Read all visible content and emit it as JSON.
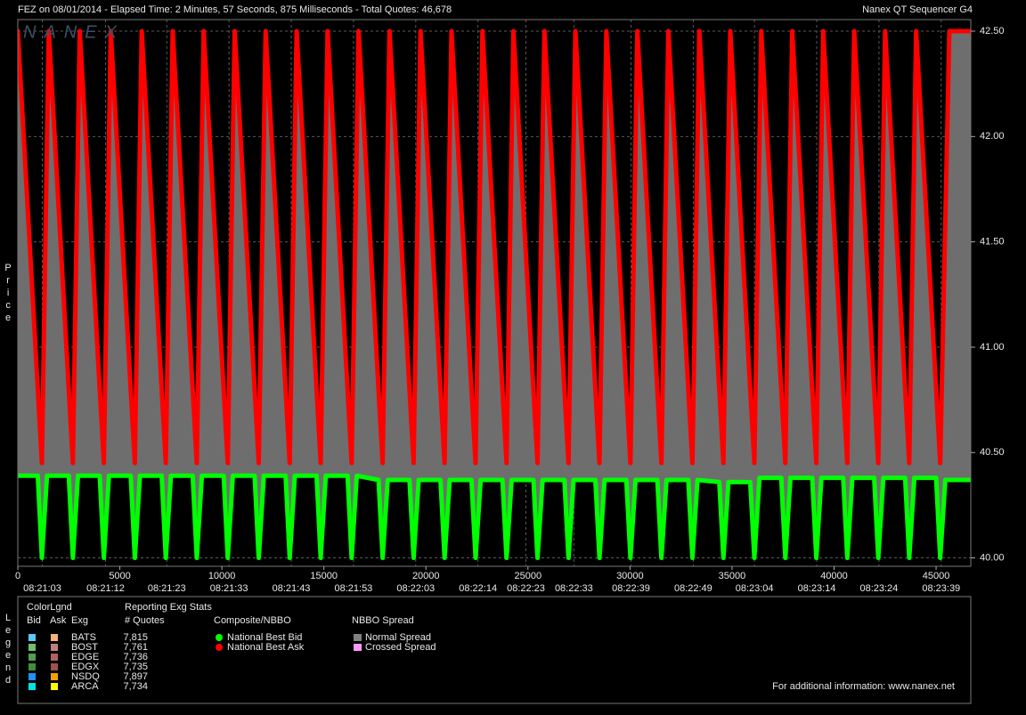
{
  "header": {
    "title": "FEZ on 08/01/2014  -  Elapsed Time: 2 Minutes, 57 Seconds, 875 Milliseconds  -  Total Quotes: 46,678",
    "product": "Nanex QT Sequencer G4",
    "watermark": "NANEX"
  },
  "chart_data": {
    "type": "line",
    "y_label": "Price",
    "xlim": [
      0,
      46700
    ],
    "ylim": [
      39.96,
      42.555
    ],
    "xticks": [
      0,
      5000,
      10000,
      15000,
      20000,
      25000,
      30000,
      35000,
      40000,
      45000
    ],
    "yticks": [
      {
        "value": 40.0,
        "label": "40.00"
      },
      {
        "value": 40.5,
        "label": "40.50"
      },
      {
        "value": 41.0,
        "label": "41.00"
      },
      {
        "value": 41.5,
        "label": "41.50"
      },
      {
        "value": 42.0,
        "label": "42.00"
      },
      {
        "value": 42.5,
        "label": "42.50"
      }
    ],
    "time_ticks": [
      {
        "value": 1200,
        "label": "08:21:03"
      },
      {
        "value": 4300,
        "label": "08:21:12"
      },
      {
        "value": 7300,
        "label": "08:21:23"
      },
      {
        "value": 10350,
        "label": "08:21:33"
      },
      {
        "value": 13400,
        "label": "08:21:43"
      },
      {
        "value": 16450,
        "label": "08:21:53"
      },
      {
        "value": 19500,
        "label": "08:22:03"
      },
      {
        "value": 22550,
        "label": "08:22:14"
      },
      {
        "value": 24900,
        "label": "08:22:23"
      },
      {
        "value": 27250,
        "label": "08:22:33"
      },
      {
        "value": 30050,
        "label": "08:22:39"
      },
      {
        "value": 33100,
        "label": "08:22:49"
      },
      {
        "value": 36100,
        "label": "08:23:04"
      },
      {
        "value": 39150,
        "label": "08:23:14"
      },
      {
        "value": 42200,
        "label": "08:23:24"
      },
      {
        "value": 45250,
        "label": "08:23:39"
      }
    ],
    "grid": true,
    "spread_color": "#6e6e6e",
    "series": [
      {
        "name": "National Best Ask",
        "color": "#ff0000",
        "x": [
          0,
          1180,
          1518,
          2698,
          3036,
          4216,
          4554,
          5734,
          6072,
          7252,
          7590,
          8770,
          9108,
          10288,
          10626,
          11806,
          12144,
          13324,
          13662,
          14842,
          15180,
          16360,
          16698,
          17878,
          18216,
          19396,
          19734,
          20914,
          21252,
          22432,
          22770,
          23950,
          24288,
          25468,
          25806,
          26986,
          27324,
          28504,
          28842,
          30022,
          30360,
          31540,
          31878,
          33058,
          33396,
          34576,
          34914,
          36094,
          36432,
          37612,
          37950,
          39130,
          39468,
          40648,
          40986,
          42166,
          42504,
          43684,
          44022,
          45202,
          45650,
          46700
        ],
        "values": [
          42.5,
          40.45,
          42.5,
          40.45,
          42.5,
          40.45,
          42.5,
          40.45,
          42.5,
          40.45,
          42.5,
          40.45,
          42.5,
          40.45,
          42.5,
          40.45,
          42.5,
          40.45,
          42.5,
          40.45,
          42.5,
          40.45,
          42.5,
          40.45,
          42.5,
          40.45,
          42.5,
          40.45,
          42.5,
          40.45,
          42.5,
          40.45,
          42.5,
          40.45,
          42.5,
          40.45,
          42.5,
          40.45,
          42.5,
          40.45,
          42.5,
          40.45,
          42.5,
          40.45,
          42.5,
          40.45,
          42.5,
          40.45,
          42.5,
          40.45,
          42.5,
          40.45,
          42.5,
          40.45,
          42.5,
          40.45,
          42.5,
          40.45,
          42.5,
          40.45,
          42.5,
          42.5
        ]
      },
      {
        "name": "National Best Bid",
        "color": "#00ff00",
        "x": [
          0,
          980,
          1180,
          1430,
          2498,
          2698,
          2948,
          4016,
          4216,
          4466,
          5534,
          5734,
          5984,
          7052,
          7252,
          7502,
          8570,
          8770,
          9020,
          10088,
          10288,
          10538,
          11606,
          11806,
          12056,
          13124,
          13324,
          13574,
          14642,
          14842,
          15092,
          16160,
          16360,
          16610,
          17678,
          17878,
          18128,
          19196,
          19396,
          19646,
          20714,
          20914,
          21164,
          22232,
          22432,
          22682,
          23750,
          23950,
          24200,
          25268,
          25468,
          25718,
          26786,
          26986,
          27236,
          28304,
          28504,
          28754,
          29822,
          30022,
          30272,
          31340,
          31540,
          31790,
          32858,
          33058,
          33308,
          34376,
          34576,
          34826,
          35894,
          36094,
          36344,
          37412,
          37612,
          37862,
          38930,
          39130,
          39380,
          40448,
          40648,
          40898,
          41966,
          42166,
          42416,
          43484,
          43684,
          43934,
          45002,
          45202,
          45452,
          46700
        ],
        "values": [
          40.39,
          40.39,
          40.0,
          40.39,
          40.39,
          40.0,
          40.39,
          40.39,
          40.0,
          40.39,
          40.39,
          40.0,
          40.39,
          40.39,
          40.0,
          40.39,
          40.39,
          40.0,
          40.39,
          40.39,
          40.0,
          40.39,
          40.39,
          40.0,
          40.39,
          40.39,
          40.0,
          40.39,
          40.39,
          40.0,
          40.39,
          40.39,
          40.0,
          40.39,
          40.37,
          40.0,
          40.37,
          40.37,
          40.0,
          40.37,
          40.37,
          40.0,
          40.37,
          40.37,
          40.0,
          40.37,
          40.37,
          40.0,
          40.37,
          40.37,
          40.0,
          40.37,
          40.37,
          40.0,
          40.37,
          40.37,
          40.0,
          40.37,
          40.37,
          40.0,
          40.37,
          40.37,
          40.0,
          40.37,
          40.37,
          40.0,
          40.37,
          40.36,
          40.0,
          40.36,
          40.36,
          40.0,
          40.38,
          40.38,
          40.0,
          40.38,
          40.38,
          40.0,
          40.38,
          40.38,
          40.0,
          40.38,
          40.38,
          40.0,
          40.38,
          40.38,
          40.0,
          40.38,
          40.38,
          40.0,
          40.37,
          40.37
        ]
      }
    ]
  },
  "legend_panel": {
    "label": "Legend",
    "title": "ColorLgnd",
    "columns": [
      "Bid",
      "Ask",
      "Exg"
    ],
    "stats_title": "Reporting Exg Stats",
    "stats_column": "# Quotes",
    "exchanges": [
      {
        "name": "BATS",
        "bid_color": "#5bc8f5",
        "ask_color": "#f5b27a",
        "quotes": "7,815"
      },
      {
        "name": "BOST",
        "bid_color": "#6fbf6f",
        "ask_color": "#c08080",
        "quotes": "7,761"
      },
      {
        "name": "EDGE",
        "bid_color": "#4f9f4f",
        "ask_color": "#b06060",
        "quotes": "7,736"
      },
      {
        "name": "EDGX",
        "bid_color": "#3f8f3f",
        "ask_color": "#a05050",
        "quotes": "7,735"
      },
      {
        "name": "NSDQ",
        "bid_color": "#1e90ff",
        "ask_color": "#f5a000",
        "quotes": "7,897"
      },
      {
        "name": "ARCA",
        "bid_color": "#00e5e5",
        "ask_color": "#ffff00",
        "quotes": "7,734"
      }
    ],
    "composite_title": "Composite/NBBO",
    "spread_title": "NBBO Spread",
    "spread_items": [
      {
        "name": "Normal Spread",
        "color": "#808080"
      },
      {
        "name": "Crossed Spread",
        "color": "#ff99ff"
      }
    ],
    "footer": "For additional information: www.nanex.net"
  }
}
